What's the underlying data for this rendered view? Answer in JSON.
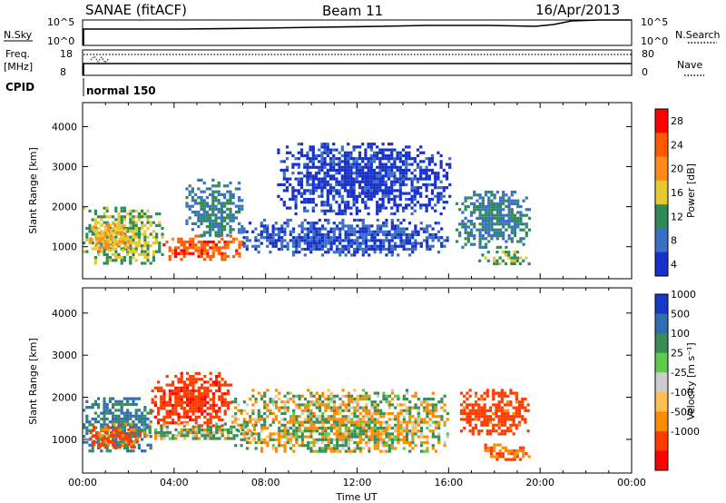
{
  "header": {
    "title": "SANAE (fitACF)",
    "beam": "Beam 11",
    "date": "16/Apr/2013"
  },
  "status_panel": {
    "nsky_label": "N.Sky",
    "nsky_ticks": [
      "10^5",
      "10^0"
    ],
    "nsearch_label": "N.Search",
    "nsearch_ticks": [
      "10^5",
      "10^0"
    ],
    "freq_label": "Freq.",
    "freq_unit": "[MHz]",
    "freq_ticks": [
      "18",
      "8"
    ],
    "nave_label": "Nave",
    "nave_ticks": [
      "80",
      "0"
    ],
    "cpid_label": "CPID",
    "cpid_value": "normal 150"
  },
  "colorbars": {
    "power": {
      "label": "Power [dB]",
      "ticks": [
        "28",
        "24",
        "20",
        "16",
        "12",
        "8",
        "4"
      ],
      "colors": [
        "#ff0000",
        "#ff5a00",
        "#ff8c1a",
        "#e8c832",
        "#2e8b57",
        "#3a6fc4",
        "#1630c8"
      ]
    },
    "velocity": {
      "label": "Velocity [m s⁻¹]",
      "ticks": [
        "1000",
        "500",
        "100",
        "25",
        "-25",
        "-100",
        "-500",
        "-1000"
      ],
      "colors": [
        "#1838c8",
        "#2e6fb0",
        "#3a8c55",
        "#5ccc4a",
        "#cccccc",
        "#ffbe55",
        "#ff8c00",
        "#ff3c00",
        "#ff0000"
      ]
    }
  },
  "chart_data": [
    {
      "type": "heatmap",
      "name": "power-panel",
      "ylabel": "Slant Range [km]",
      "y_ticks": [
        1000,
        2000,
        3000,
        4000
      ],
      "ylim": [
        200,
        4600
      ],
      "xlim": [
        0,
        24
      ],
      "colorbar": "Power [dB]",
      "value_range": [
        0,
        30
      ],
      "blobs": [
        {
          "t0": 0.0,
          "t1": 3.5,
          "r0": 600,
          "r1": 2000,
          "value": 14
        },
        {
          "t0": 0.3,
          "t1": 2.0,
          "r0": 900,
          "r1": 1600,
          "value": 18
        },
        {
          "t0": 3.5,
          "t1": 7.0,
          "r0": 700,
          "r1": 1300,
          "value": 24
        },
        {
          "t0": 4.5,
          "t1": 7.0,
          "r0": 1300,
          "r1": 2700,
          "value": 10
        },
        {
          "t0": 7.0,
          "t1": 16.0,
          "r0": 800,
          "r1": 1700,
          "value": 6
        },
        {
          "t0": 8.5,
          "t1": 16.0,
          "r0": 1800,
          "r1": 3600,
          "value": 4
        },
        {
          "t0": 16.3,
          "t1": 19.5,
          "r0": 1000,
          "r1": 2400,
          "value": 10
        },
        {
          "t0": 17.3,
          "t1": 19.5,
          "r0": 550,
          "r1": 900,
          "value": 14
        }
      ]
    },
    {
      "type": "heatmap",
      "name": "velocity-panel",
      "ylabel": "Slant Range [km]",
      "y_ticks": [
        1000,
        2000,
        3000,
        4000
      ],
      "ylim": [
        200,
        4600
      ],
      "xlim": [
        0,
        24
      ],
      "x_ticks": [
        "00:00",
        "04:00",
        "08:00",
        "12:00",
        "16:00",
        "20:00",
        "00:00"
      ],
      "xlabel": "Time UT",
      "colorbar": "Velocity [m s⁻¹]",
      "value_range": [
        -1000,
        1000
      ],
      "blobs": [
        {
          "t0": 0.0,
          "t1": 3.0,
          "r0": 700,
          "r1": 2000,
          "value": 300
        },
        {
          "t0": 0.3,
          "t1": 2.5,
          "r0": 800,
          "r1": 1400,
          "value": -400
        },
        {
          "t0": 3.0,
          "t1": 6.5,
          "r0": 1300,
          "r1": 2600,
          "value": -600
        },
        {
          "t0": 2.5,
          "t1": 7.5,
          "r0": 1000,
          "r1": 1400,
          "value": 60
        },
        {
          "t0": 6.5,
          "t1": 16.0,
          "r0": 700,
          "r1": 2200,
          "value": 0
        },
        {
          "t0": 16.5,
          "t1": 19.5,
          "r0": 1100,
          "r1": 2200,
          "value": -500
        },
        {
          "t0": 17.3,
          "t1": 19.5,
          "r0": 550,
          "r1": 900,
          "value": -300
        }
      ]
    }
  ]
}
